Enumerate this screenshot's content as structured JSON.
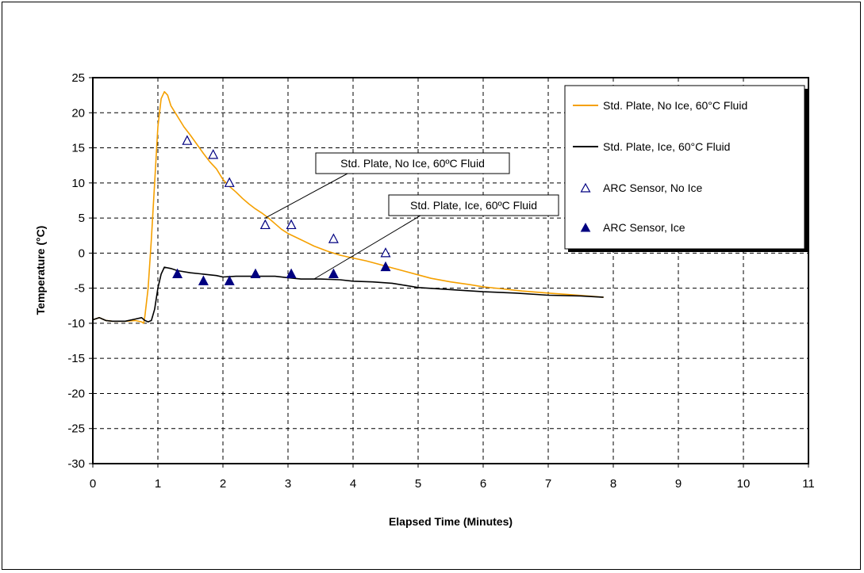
{
  "chart_data": {
    "type": "line",
    "xlabel": "Elapsed Time (Minutes)",
    "ylabel": "Temperature (°C)",
    "xlim": [
      0,
      11
    ],
    "ylim": [
      -30,
      25
    ],
    "x_ticks": [
      0,
      1,
      2,
      3,
      4,
      5,
      6,
      7,
      8,
      9,
      10,
      11
    ],
    "y_ticks": [
      25,
      20,
      15,
      10,
      5,
      0,
      -5,
      -10,
      -15,
      -20,
      -25,
      -30
    ],
    "grid": true,
    "legend_position": "top-right",
    "colors": {
      "no_ice_line": "#f5a000",
      "ice_line": "#000000",
      "markers": "#000080"
    },
    "series": [
      {
        "name": "Std. Plate, No Ice, 60°C Fluid",
        "kind": "line",
        "x": [
          0,
          0.1,
          0.2,
          0.3,
          0.5,
          0.65,
          0.75,
          0.78,
          0.8,
          0.85,
          0.9,
          0.95,
          1.0,
          1.05,
          1.1,
          1.15,
          1.2,
          1.3,
          1.4,
          1.5,
          1.6,
          1.7,
          1.8,
          1.9,
          2.0,
          2.1,
          2.2,
          2.3,
          2.4,
          2.5,
          2.6,
          2.7,
          2.8,
          2.9,
          3.0,
          3.2,
          3.4,
          3.6,
          3.8,
          4.0,
          4.2,
          4.4,
          4.6,
          4.8,
          5.0,
          5.2,
          5.5,
          5.8,
          6.0,
          6.3,
          6.6,
          7.0,
          7.3,
          7.6,
          7.85
        ],
        "y": [
          -9.5,
          -9.2,
          -9.6,
          -9.7,
          -9.7,
          -9.6,
          -9.8,
          -10,
          -9,
          -5,
          2,
          10,
          18,
          22,
          23,
          22.5,
          21,
          19.5,
          18,
          16.8,
          15.5,
          14.2,
          13,
          12,
          10.5,
          9.5,
          8.7,
          7.8,
          7,
          6.3,
          5.7,
          5,
          4.2,
          3.4,
          2.8,
          1.9,
          1,
          0.3,
          -0.3,
          -0.7,
          -1.1,
          -1.6,
          -2.1,
          -2.6,
          -3.1,
          -3.6,
          -4.1,
          -4.5,
          -4.8,
          -5.1,
          -5.4,
          -5.7,
          -5.9,
          -6.1,
          -6.3
        ]
      },
      {
        "name": "Std. Plate, Ice, 60°C Fluid",
        "kind": "line",
        "x": [
          0,
          0.1,
          0.2,
          0.3,
          0.5,
          0.65,
          0.75,
          0.8,
          0.85,
          0.9,
          0.95,
          1.0,
          1.05,
          1.1,
          1.2,
          1.3,
          1.5,
          1.7,
          1.9,
          2.0,
          2.2,
          2.5,
          2.8,
          3.0,
          3.2,
          3.5,
          3.8,
          4.0,
          4.3,
          4.6,
          4.8,
          5.0,
          5.5,
          6.0,
          6.5,
          7.0,
          7.5,
          7.85
        ],
        "y": [
          -9.5,
          -9.2,
          -9.6,
          -9.7,
          -9.7,
          -9.4,
          -9.2,
          -9.6,
          -9.8,
          -9.6,
          -8,
          -5,
          -3,
          -2,
          -2.2,
          -2.5,
          -2.8,
          -3,
          -3.2,
          -3.4,
          -3.3,
          -3.3,
          -3.3,
          -3.5,
          -3.7,
          -3.7,
          -3.8,
          -4,
          -4.1,
          -4.3,
          -4.6,
          -4.9,
          -5.2,
          -5.5,
          -5.7,
          -6,
          -6.1,
          -6.3
        ]
      },
      {
        "name": "ARC Sensor, No Ice",
        "kind": "scatter",
        "marker": "open-triangle",
        "x": [
          1.45,
          1.85,
          2.1,
          2.65,
          3.05,
          3.7,
          4.5
        ],
        "y": [
          16,
          14,
          10,
          4,
          4,
          2,
          0
        ]
      },
      {
        "name": "ARC Sensor, Ice",
        "kind": "scatter",
        "marker": "filled-triangle",
        "x": [
          1.3,
          1.7,
          2.1,
          2.5,
          3.05,
          3.7,
          4.5
        ],
        "y": [
          -3,
          -4,
          -4,
          -3,
          -3,
          -3,
          -2
        ]
      }
    ],
    "annotations": [
      {
        "text": "Std. Plate, No Ice, 60ºC Fluid",
        "points_to": [
          2.65,
          5
        ]
      },
      {
        "text": "Std. Plate, Ice, 60ºC Fluid",
        "points_to": [
          3.4,
          -3.7
        ]
      }
    ]
  }
}
